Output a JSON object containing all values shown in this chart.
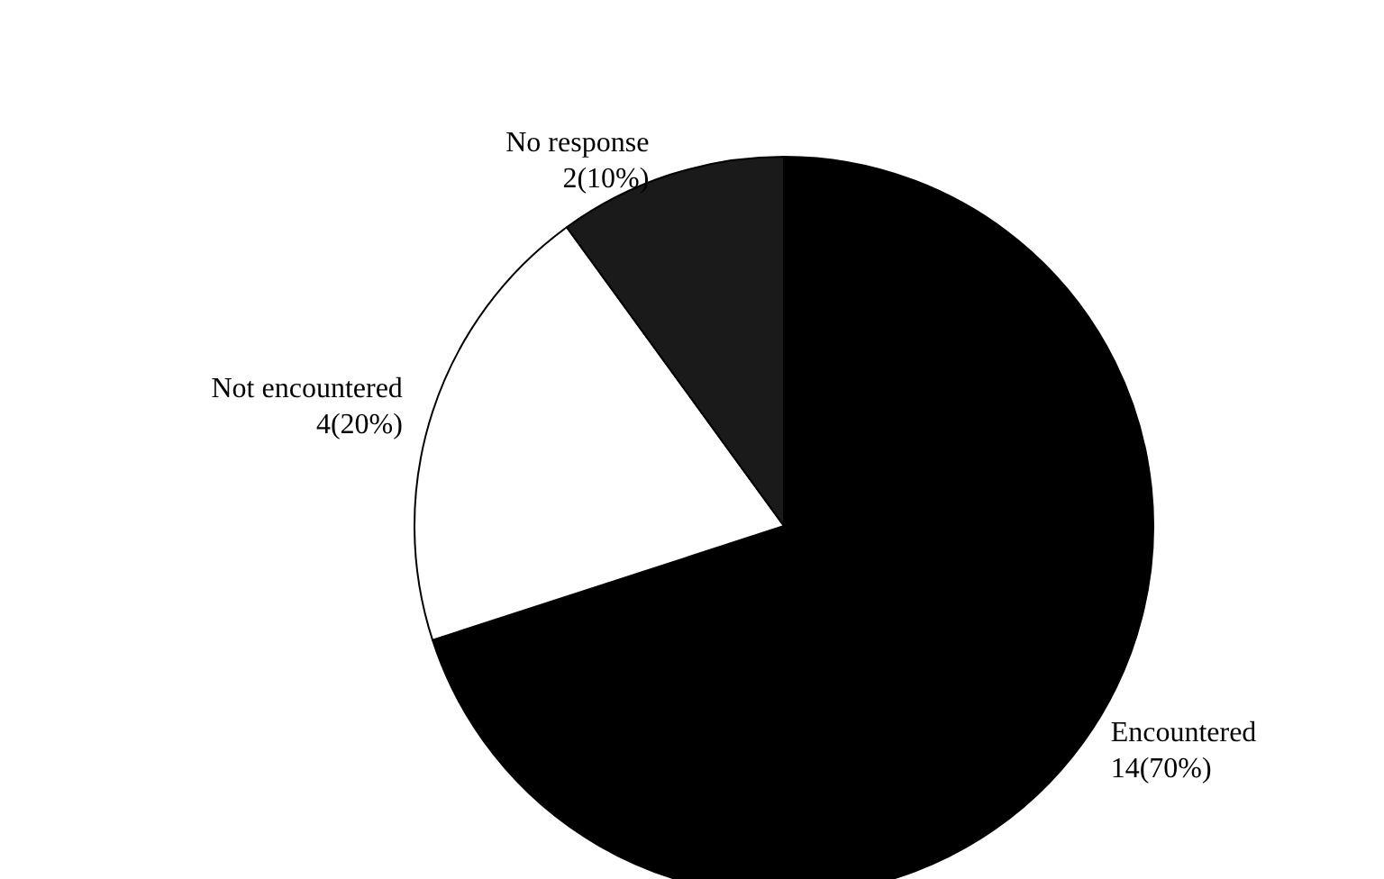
{
  "chart_data": {
    "type": "pie",
    "categories": [
      "Encountered",
      "Not encountered",
      "No response"
    ],
    "values": [
      14,
      4,
      2
    ],
    "value_labels": [
      "14(70%)",
      "4(20%)",
      "2(10%)"
    ],
    "colors": [
      "#000000",
      "#ffffff",
      "#1a1a1a"
    ],
    "legend": false
  }
}
